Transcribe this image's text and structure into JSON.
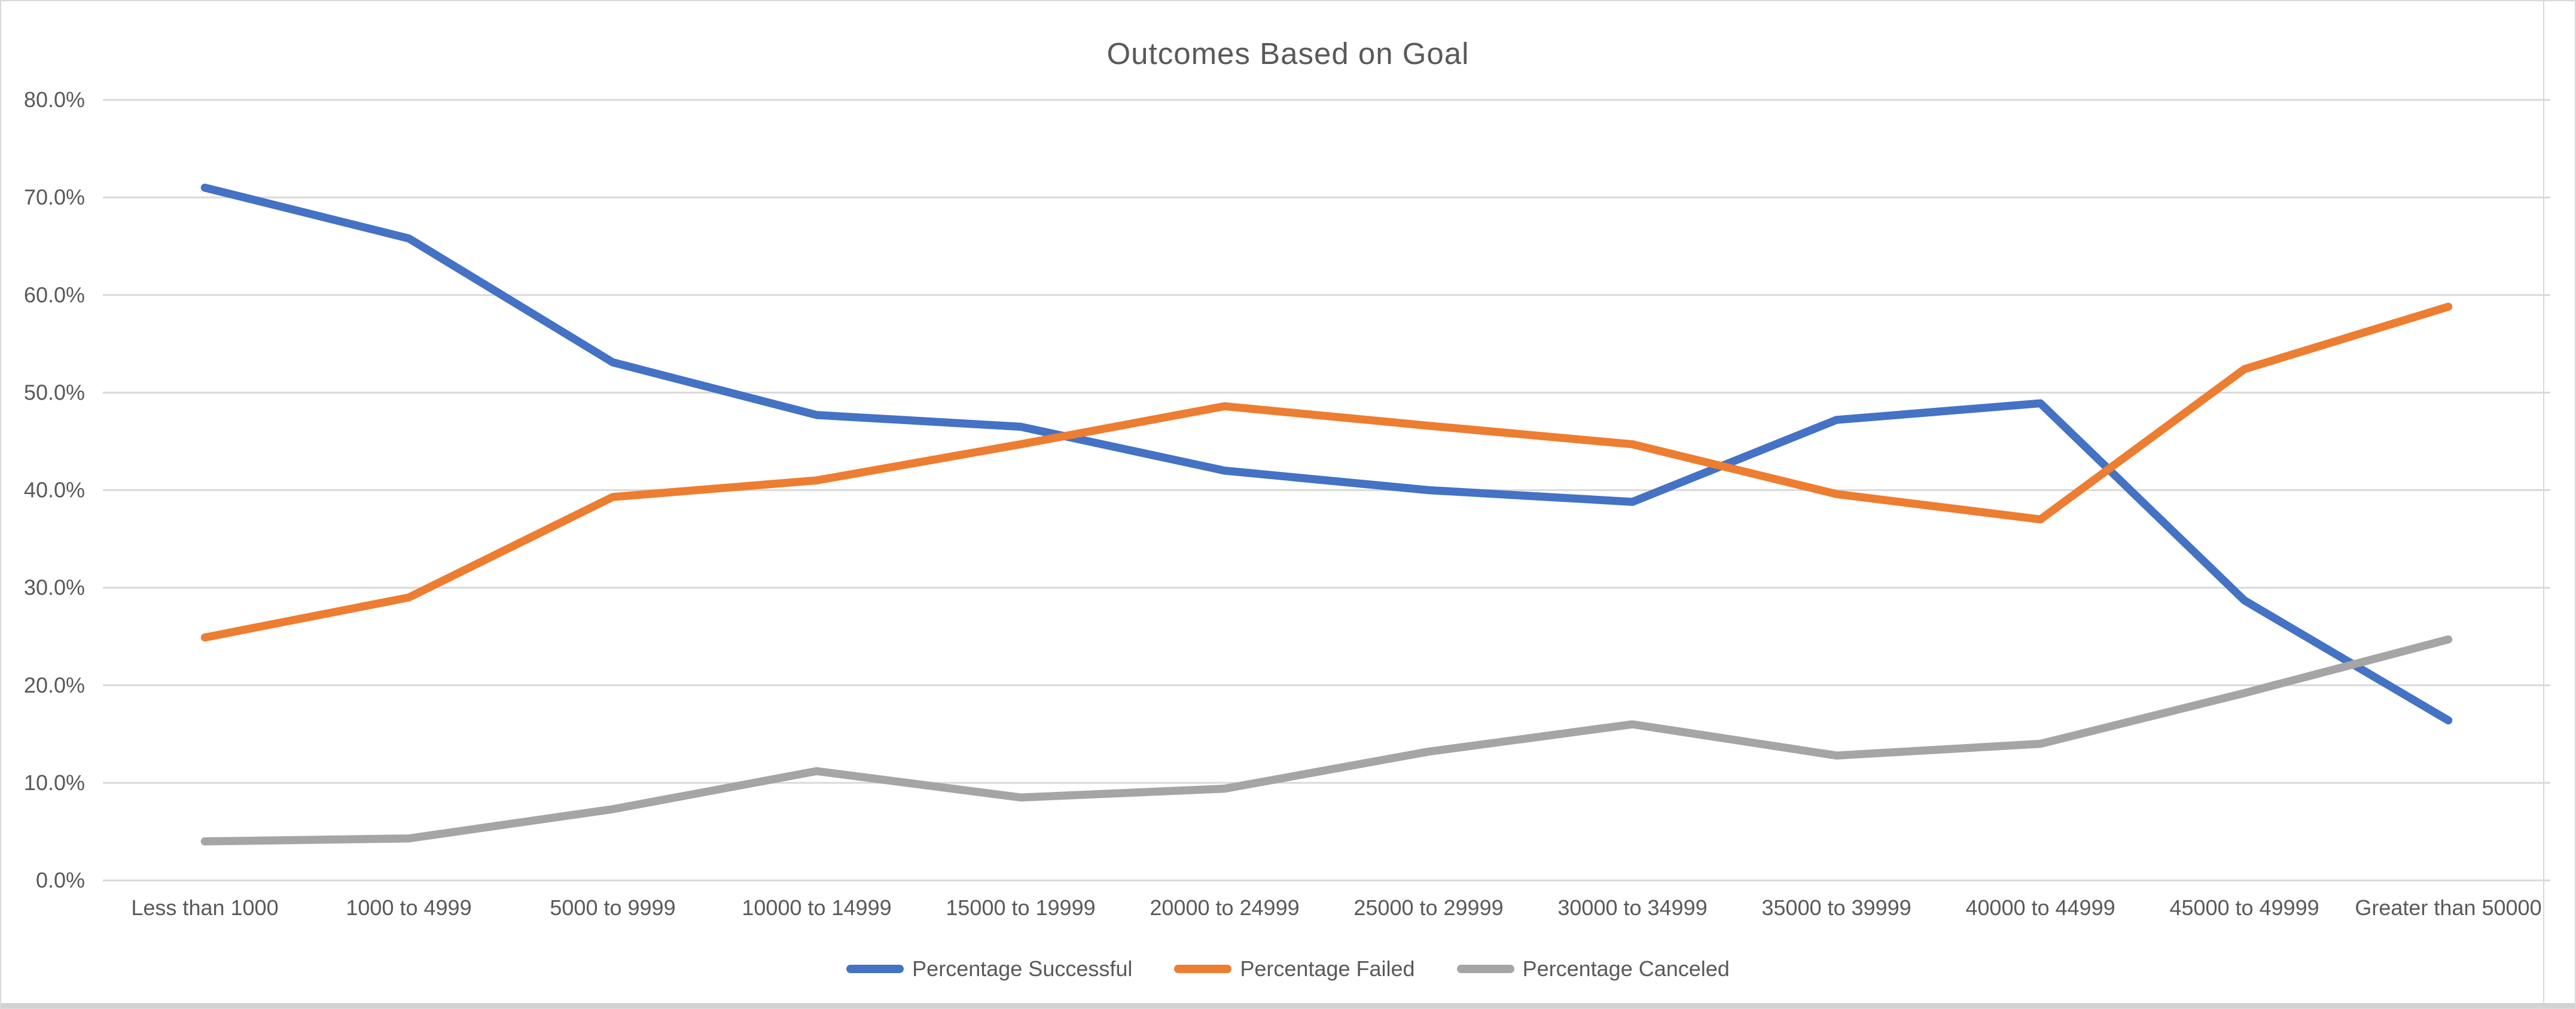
{
  "chart_data": {
    "type": "line",
    "title": "Outcomes Based on Goal",
    "xlabel": "",
    "ylabel": "",
    "ylim": [
      0,
      80
    ],
    "y_tick_step": 10,
    "y_tick_labels": [
      "80.0%",
      "70.0%",
      "60.0%",
      "50.0%",
      "40.0%",
      "30.0%",
      "20.0%",
      "10.0%",
      "0.0%"
    ],
    "grid": "horizontal",
    "legend_position": "bottom",
    "categories": [
      "Less than 1000",
      "1000 to 4999",
      "5000 to 9999",
      "10000 to 14999",
      "15000 to 19999",
      "20000 to 24999",
      "25000 to 29999",
      "30000 to 34999",
      "35000 to 39999",
      "40000 to 44999",
      "45000 to 49999",
      "Greater than 50000"
    ],
    "series": [
      {
        "name": "Percentage Successful",
        "color": "#4472C4",
        "values": [
          71.0,
          65.8,
          53.1,
          47.7,
          46.5,
          42.0,
          40.0,
          38.8,
          47.2,
          48.9,
          28.7,
          16.4
        ]
      },
      {
        "name": "Percentage Failed",
        "color": "#ED7D31",
        "values": [
          24.9,
          29.0,
          39.3,
          41.0,
          44.7,
          48.6,
          46.6,
          44.7,
          39.6,
          37.0,
          52.4,
          58.8
        ]
      },
      {
        "name": "Percentage Canceled",
        "color": "#A5A5A5",
        "values": [
          4.0,
          4.3,
          7.3,
          11.2,
          8.5,
          9.4,
          13.2,
          16.0,
          12.8,
          14.0,
          19.2,
          24.7
        ]
      }
    ]
  },
  "colors": {
    "grid": "#D9D9D9",
    "axis_text": "#595959",
    "title_text": "#595959",
    "background": "#FFFFFF",
    "edge": "#D2D2D2"
  }
}
